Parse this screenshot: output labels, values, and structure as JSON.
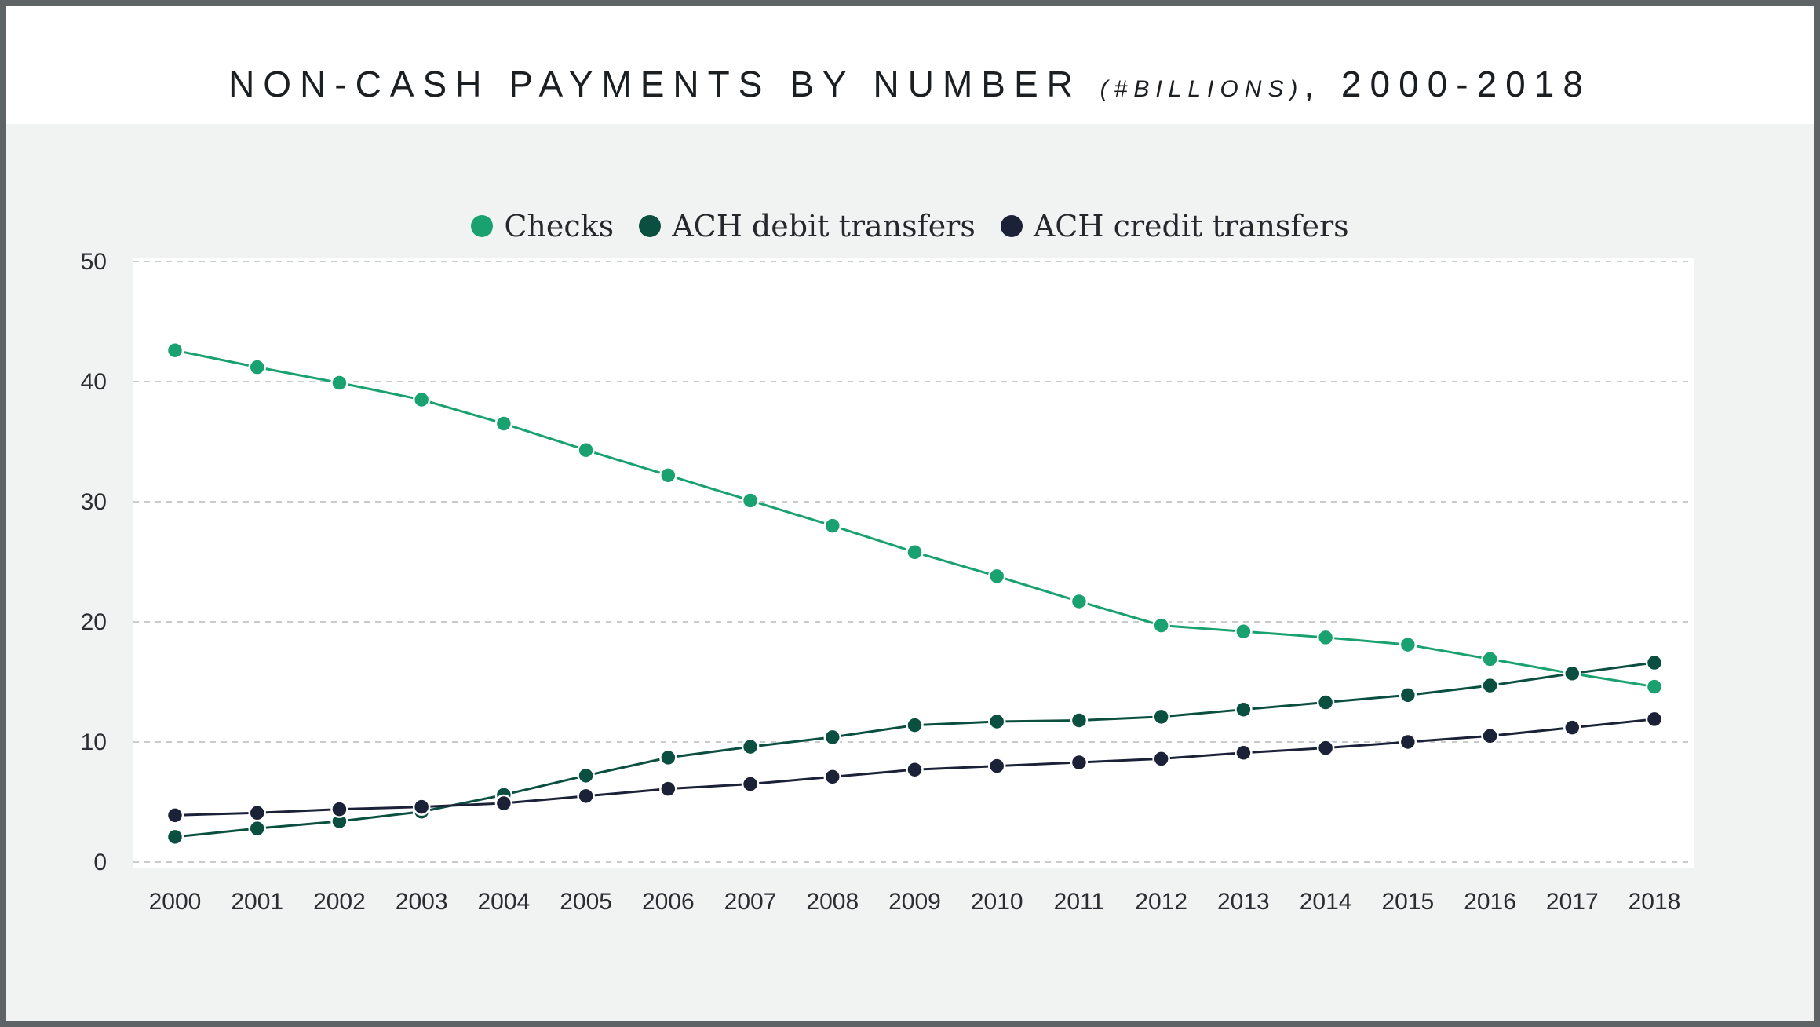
{
  "title": {
    "main": "NON-CASH PAYMENTS BY NUMBER",
    "unit": "(#BILLIONS)",
    "suffix": ", 2000-2018"
  },
  "chart_data": {
    "type": "line",
    "title": "NON-CASH PAYMENTS BY NUMBER (#BILLIONS), 2000-2018",
    "xlabel": "",
    "ylabel": "",
    "x": [
      "2000",
      "2001",
      "2002",
      "2003",
      "2004",
      "2005",
      "2006",
      "2007",
      "2008",
      "2009",
      "2010",
      "2011",
      "2012",
      "2013",
      "2014",
      "2015",
      "2016",
      "2017",
      "2018"
    ],
    "ylim": [
      0,
      50
    ],
    "yticks": [
      "0",
      "10",
      "20",
      "30",
      "40",
      "50"
    ],
    "grid": true,
    "legend_position": "top-center",
    "series": [
      {
        "name": "Checks",
        "color": "#1aa170",
        "values": [
          42.6,
          41.2,
          39.9,
          38.5,
          36.5,
          34.3,
          32.2,
          30.1,
          28.0,
          25.8,
          23.8,
          21.7,
          19.7,
          19.2,
          18.7,
          18.1,
          16.9,
          15.7,
          14.6
        ]
      },
      {
        "name": "ACH debit transfers",
        "color": "#0a4f40",
        "values": [
          2.1,
          2.8,
          3.4,
          4.2,
          5.6,
          7.2,
          8.7,
          9.6,
          10.4,
          11.4,
          11.7,
          11.8,
          12.1,
          12.7,
          13.3,
          13.9,
          14.7,
          15.7,
          16.6
        ]
      },
      {
        "name": "ACH credit transfers",
        "color": "#1b2238",
        "values": [
          3.9,
          4.1,
          4.4,
          4.6,
          4.9,
          5.5,
          6.1,
          6.5,
          7.1,
          7.7,
          8.0,
          8.3,
          8.6,
          9.1,
          9.5,
          10.0,
          10.5,
          11.2,
          11.9
        ]
      }
    ]
  }
}
